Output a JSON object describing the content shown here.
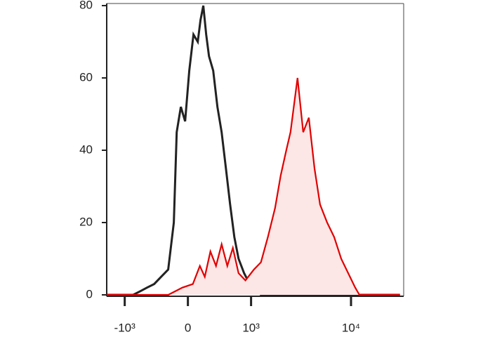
{
  "chart_data": {
    "type": "histogram-overlay",
    "xscale": "asinh",
    "xlim": [
      -1550,
      32600
    ],
    "xticks": [
      {
        "value": -1000,
        "label": "-10³"
      },
      0,
      {
        "value": 1000,
        "label": "10³"
      },
      {
        "value": 10000,
        "label": "10⁴"
      }
    ],
    "ylim": [
      0,
      80
    ],
    "yticks": [
      0,
      20,
      40,
      60,
      80
    ],
    "series": [
      {
        "color": "#222222",
        "fill": null,
        "x": [
          -1550,
          -805,
          -664,
          -541,
          -428,
          -328,
          -235,
          -165,
          -131,
          -82,
          -32,
          16,
          65,
          115,
          148,
          182,
          217,
          253,
          308,
          367,
          428,
          494,
          564,
          639,
          719,
          836,
          964,
          1114,
          1276,
          30000
        ],
        "values": [
          0,
          0,
          1,
          2,
          3,
          5,
          7,
          20,
          45,
          52,
          48,
          62,
          72,
          70,
          76,
          80,
          72,
          66,
          62,
          52,
          45,
          35,
          25,
          16,
          10,
          6,
          3,
          2,
          0,
          0
        ]
      },
      {
        "color": "#e00000",
        "fill": "#fde6e6",
        "x": [
          -1550,
          -235,
          -65,
          57,
          140,
          200,
          271,
          347,
          428,
          517,
          612,
          719,
          866,
          1074,
          1276,
          1507,
          1784,
          2033,
          2312,
          2549,
          2992,
          3404,
          3863,
          4393,
          4985,
          5845,
          6844,
          8013,
          9383,
          10990,
          12082,
          30000
        ],
        "values": [
          0,
          0,
          2,
          3,
          8,
          5,
          12,
          8,
          14,
          8,
          13,
          6,
          4,
          7,
          9,
          16,
          24,
          33,
          40,
          45,
          60,
          45,
          49,
          35,
          25,
          20,
          16,
          10,
          6,
          2,
          0,
          0
        ]
      }
    ]
  }
}
